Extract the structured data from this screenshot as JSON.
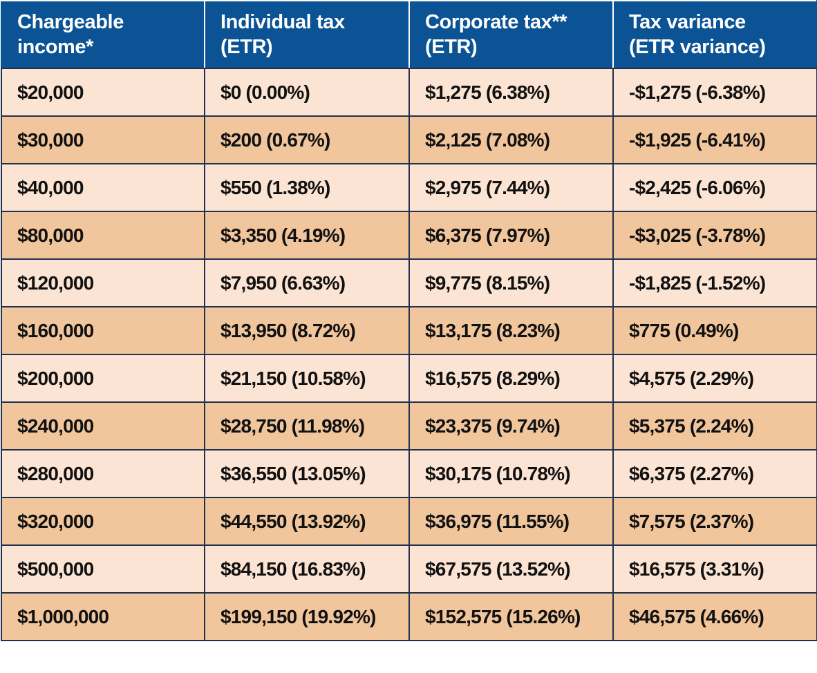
{
  "table": {
    "header": [
      [
        "Chargeable",
        "income*"
      ],
      [
        "Individual tax",
        "(ETR)"
      ],
      [
        "Corporate tax**",
        "(ETR)"
      ],
      [
        "Tax variance",
        "(ETR variance)"
      ]
    ],
    "rows": [
      [
        "$20,000",
        "$0 (0.00%)",
        "$1,275 (6.38%)",
        "-$1,275 (-6.38%)"
      ],
      [
        "$30,000",
        "$200 (0.67%)",
        "$2,125 (7.08%)",
        "-$1,925 (-6.41%)"
      ],
      [
        "$40,000",
        "$550 (1.38%)",
        "$2,975 (7.44%)",
        "-$2,425 (-6.06%)"
      ],
      [
        "$80,000",
        "$3,350 (4.19%)",
        "$6,375 (7.97%)",
        "-$3,025 (-3.78%)"
      ],
      [
        "$120,000",
        "$7,950 (6.63%)",
        "$9,775 (8.15%)",
        "-$1,825 (-1.52%)"
      ],
      [
        "$160,000",
        "$13,950 (8.72%)",
        "$13,175 (8.23%)",
        "$775 (0.49%)"
      ],
      [
        "$200,000",
        "$21,150 (10.58%)",
        "$16,575 (8.29%)",
        "$4,575 (2.29%)"
      ],
      [
        "$240,000",
        "$28,750 (11.98%)",
        "$23,375 (9.74%)",
        "$5,375 (2.24%)"
      ],
      [
        "$280,000",
        "$36,550 (13.05%)",
        "$30,175 (10.78%)",
        "$6,375 (2.27%)"
      ],
      [
        "$320,000",
        "$44,550 (13.92%)",
        "$36,975 (11.55%)",
        "$7,575 (2.37%)"
      ],
      [
        "$500,000",
        "$84,150 (16.83%)",
        "$67,575 (13.52%)",
        "$16,575 (3.31%)"
      ],
      [
        "$1,000,000",
        "$199,150 (19.92%)",
        "$152,575 (15.26%)",
        "$46,575 (4.66%)"
      ]
    ]
  }
}
